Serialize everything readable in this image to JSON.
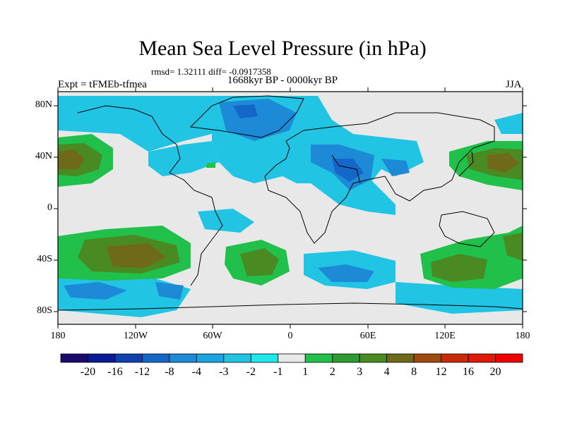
{
  "title": "Mean Sea Level Pressure (in hPa)",
  "stats": "rmsd= 1.32111 diff= -0.0917358",
  "period": "1668kyr BP - 0000kyr BP",
  "experiment": "Expt = tFMEb-tfmea",
  "season": "JJA",
  "lat_labels": [
    "80N",
    "40N",
    "0",
    "40S",
    "80S"
  ],
  "lon_labels": [
    "180",
    "120W",
    "60W",
    "0",
    "60E",
    "120E",
    "180"
  ],
  "colorbar": {
    "labels": [
      "-20",
      "-16",
      "-12",
      "-8",
      "-4",
      "-3",
      "-2",
      "-1",
      "1",
      "2",
      "3",
      "4",
      "8",
      "12",
      "16",
      "20"
    ],
    "colors": [
      "#1a0a6e",
      "#0a1a96",
      "#1040b0",
      "#1466c8",
      "#1c8ad6",
      "#1aa4e0",
      "#22c4e4",
      "#1ee8ec",
      "#e8e8e8",
      "#20c04a",
      "#2e9a32",
      "#4a8a22",
      "#6e6a1a",
      "#a04a12",
      "#c82a0a",
      "#e01a08",
      "#f00000"
    ]
  },
  "map": {
    "background_color": "#e8e8e8",
    "land_color": "none"
  }
}
